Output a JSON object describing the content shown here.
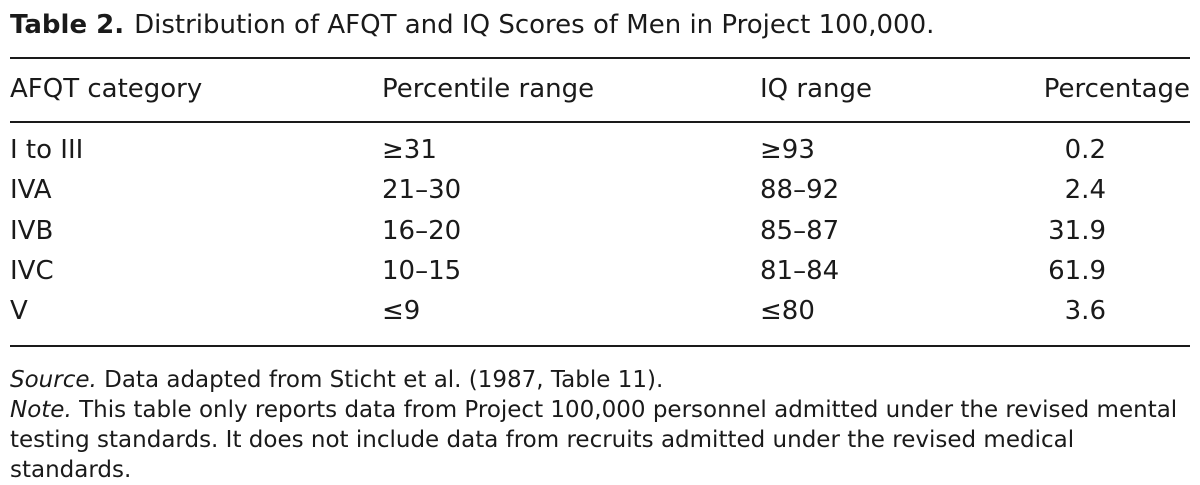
{
  "caption": {
    "label": "Table 2.",
    "title": "Distribution of AFQT and IQ Scores of Men in Project 100,000."
  },
  "table": {
    "headers": [
      "AFQT category",
      "Percentile range",
      "IQ range",
      "Percentage"
    ],
    "rows": [
      [
        "I to III",
        "≥31",
        "≥93",
        "0.2"
      ],
      [
        "IVA",
        "21–30",
        "88–92",
        "2.4"
      ],
      [
        "IVB",
        "16–20",
        "85–87",
        "31.9"
      ],
      [
        "IVC",
        "10–15",
        "81–84",
        "61.9"
      ],
      [
        "V",
        "≤9",
        "≤80",
        "3.6"
      ]
    ]
  },
  "notes": {
    "source_label": "Source.",
    "source_text": "Data adapted from Sticht et al. (1987, Table 11).",
    "note_label": "Note.",
    "note_text": "This table only reports data from Project 100,000 personnel admitted under the revised mental testing standards. It does not include data from recruits admitted under the revised medical standards."
  }
}
